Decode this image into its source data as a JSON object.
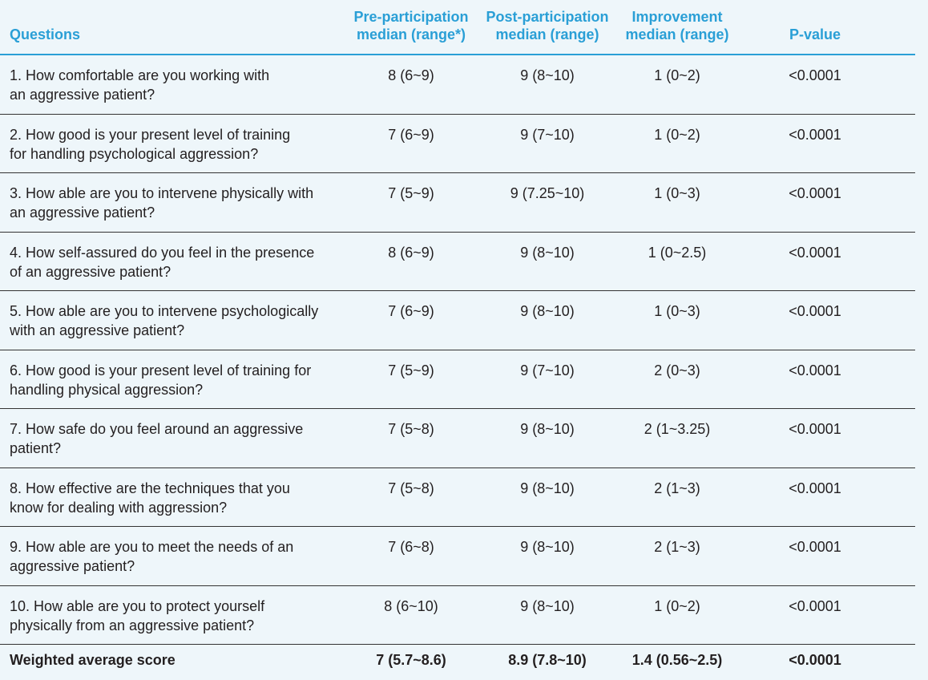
{
  "table": {
    "header": [
      [
        "Questions"
      ],
      [
        "Pre-participation",
        "median (range*)"
      ],
      [
        "Post-participation",
        "median (range)"
      ],
      [
        "Improvement",
        "median (range)"
      ],
      [
        "P-value"
      ]
    ],
    "rows": [
      [
        [
          "1. How comfortable are you working with",
          "an aggressive patient?"
        ],
        "8 (6~9)",
        "9 (8~10)",
        "1 (0~2)",
        "<0.0001"
      ],
      [
        [
          "2. How good is your present level of training",
          "for handling psychological aggression?"
        ],
        "7 (6~9)",
        "9 (7~10)",
        "1 (0~2)",
        "<0.0001"
      ],
      [
        [
          "3. How able are you to intervene physically with",
          "an aggressive patient?"
        ],
        "7 (5~9)",
        "9 (7.25~10)",
        "1 (0~3)",
        "<0.0001"
      ],
      [
        [
          "4. How self-assured do you feel in the presence",
          "of an aggressive patient?"
        ],
        "8 (6~9)",
        "9 (8~10)",
        "1 (0~2.5)",
        "<0.0001"
      ],
      [
        [
          "5. How able are you to intervene psychologically",
          "with an aggressive patient?"
        ],
        "7 (6~9)",
        "9 (8~10)",
        "1 (0~3)",
        "<0.0001"
      ],
      [
        [
          "6. How good is your present level of training for",
          "handling physical aggression?"
        ],
        "7 (5~9)",
        "9 (7~10)",
        "2 (0~3)",
        "<0.0001"
      ],
      [
        [
          "7. How safe do you feel around an aggressive",
          "patient?"
        ],
        "7 (5~8)",
        "9 (8~10)",
        "2 (1~3.25)",
        "<0.0001"
      ],
      [
        [
          "8. How effective are the techniques that you",
          "know for dealing with aggression?"
        ],
        "7 (5~8)",
        "9 (8~10)",
        "2 (1~3)",
        "<0.0001"
      ],
      [
        [
          "9. How able are you to meet the needs of an",
          "aggressive patient?"
        ],
        "7 (6~8)",
        "9 (8~10)",
        "2 (1~3)",
        "<0.0001"
      ],
      [
        [
          "10. How able are you to protect yourself",
          "physically from an aggressive patient?"
        ],
        "8 (6~10)",
        "9 (8~10)",
        "1 (0~2)",
        "<0.0001"
      ],
      [
        [
          "Weighted average score"
        ],
        "7 (5.7~8.6)",
        "8.9 (7.8~10)",
        "1.4 (0.56~2.5)",
        "<0.0001"
      ]
    ]
  }
}
